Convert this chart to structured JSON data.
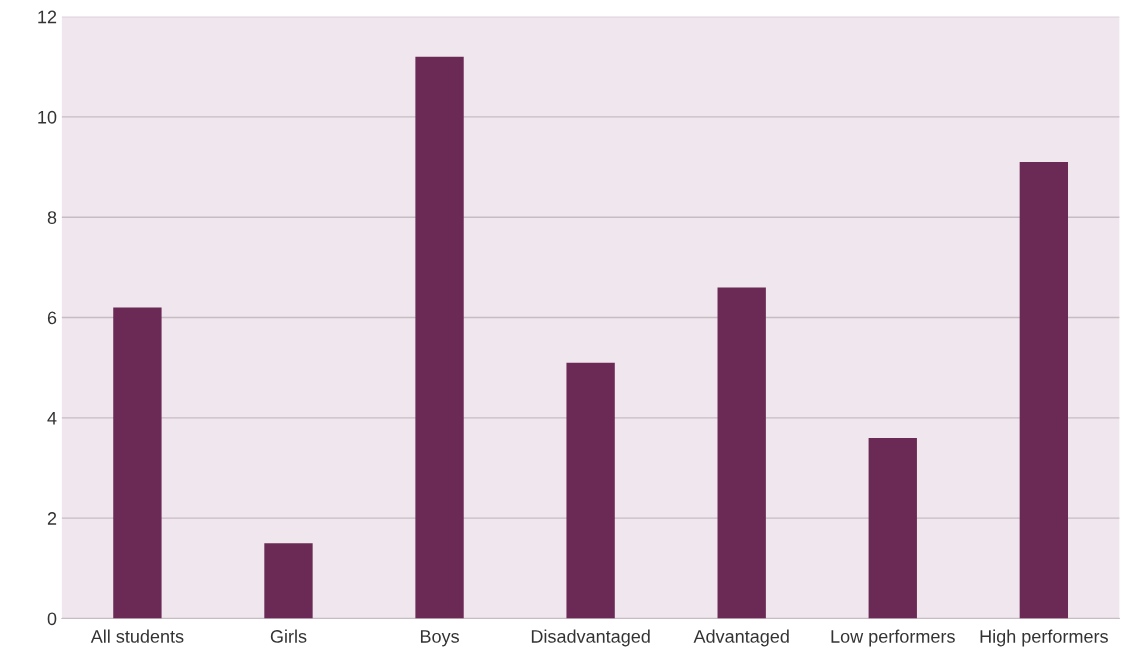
{
  "chart_data": {
    "type": "bar",
    "categories": [
      "All students",
      "Girls",
      "Boys",
      "Disadvantaged",
      "Advantaged",
      "Low performers",
      "High performers"
    ],
    "values": [
      6.2,
      1.5,
      11.2,
      5.1,
      6.6,
      3.6,
      9.1
    ],
    "color": "#6b2a55",
    "ylim": [
      0,
      12
    ],
    "yticks": [
      0,
      2,
      4,
      6,
      8,
      10,
      12
    ],
    "grid": "y"
  }
}
